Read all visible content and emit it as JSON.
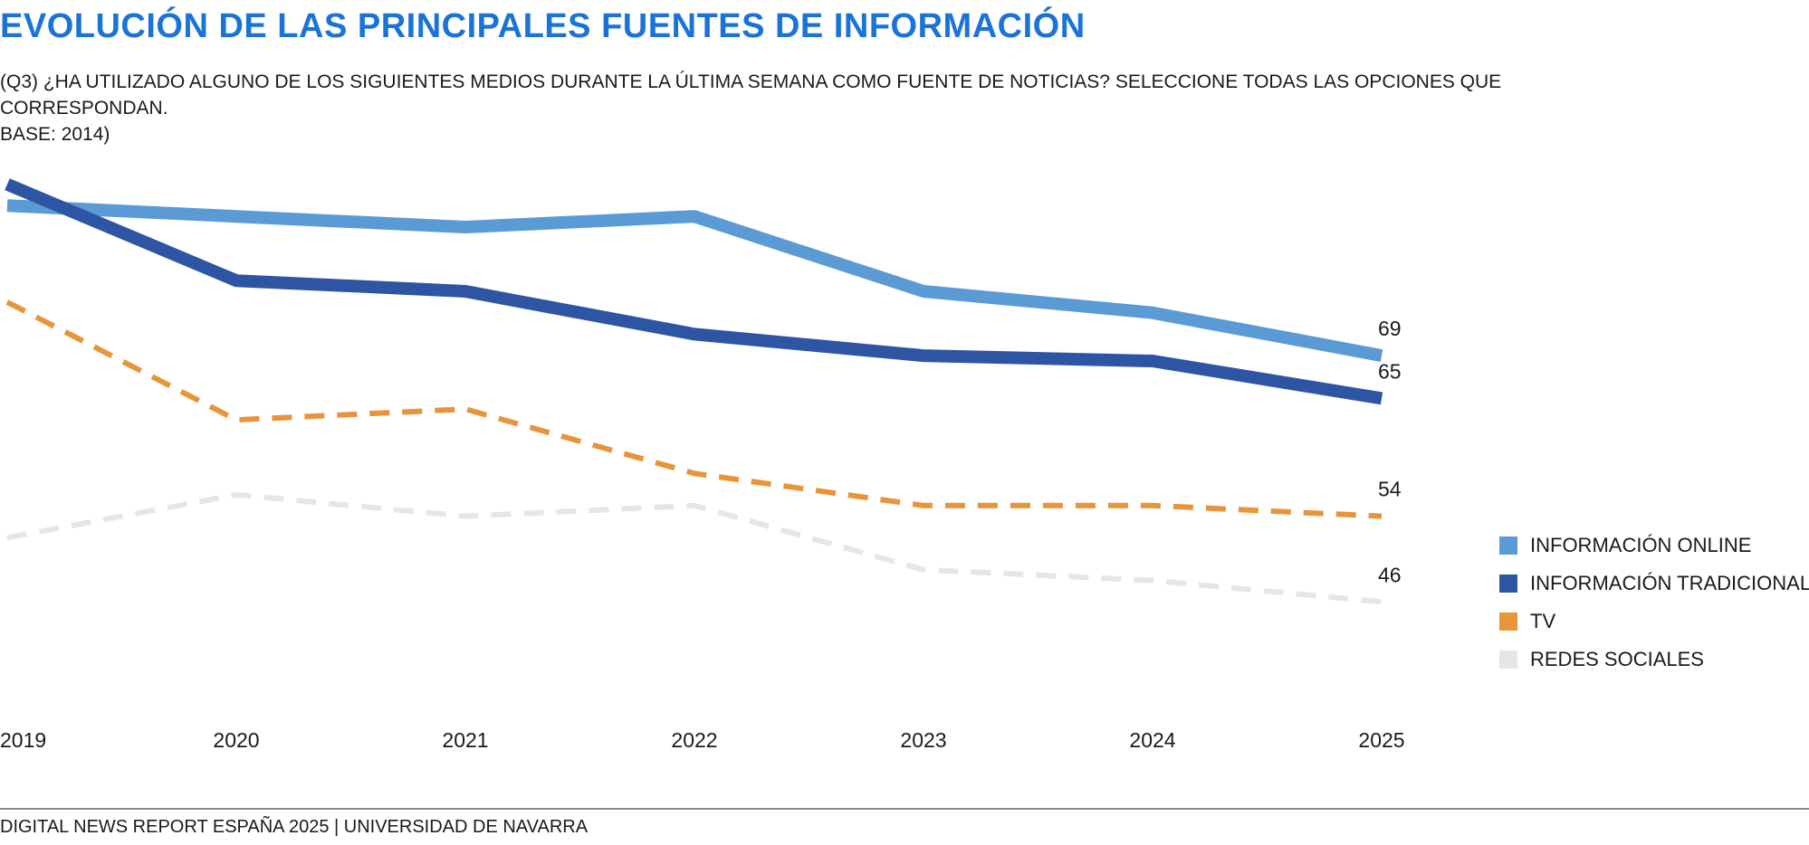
{
  "title": "EVOLUCIÓN DE LAS PRINCIPALES FUENTES DE INFORMACIÓN",
  "subtitle_lines": [
    "(Q3) ¿HA UTILIZADO ALGUNO DE LOS SIGUIENTES MEDIOS DURANTE LA ÚLTIMA SEMANA COMO FUENTE DE NOTICIAS? SELECCIONE TODAS LAS OPCIONES QUE",
    "CORRESPONDAN.",
    "BASE: 2014)"
  ],
  "footer": "DIGITAL NEWS REPORT ESPAÑA 2025 | UNIVERSIDAD DE NAVARRA",
  "legend": [
    {
      "label": "INFORMACIÓN ONLINE",
      "color": "#5b9bd5"
    },
    {
      "label": "INFORMACIÓN TRADICIONAL",
      "color": "#2e55a3"
    },
    {
      "label": "TV",
      "color": "#e8943a"
    },
    {
      "label": "REDES SOCIALES",
      "color": "#e6e6e6"
    }
  ],
  "chart_data": {
    "type": "line",
    "categories": [
      "2019",
      "2020",
      "2021",
      "2022",
      "2023",
      "2024",
      "2025"
    ],
    "ylim": [
      38,
      87
    ],
    "grid": false,
    "legend_position": "right",
    "series": [
      {
        "name": "INFORMACIÓN ONLINE",
        "values": [
          83,
          82,
          81,
          82,
          75,
          73,
          69
        ],
        "color": "#5b9bd5",
        "style": "solid",
        "end_label": "69"
      },
      {
        "name": "INFORMACIÓN TRADICIONAL",
        "values": [
          85,
          76,
          75,
          71,
          69,
          68.5,
          65
        ],
        "color": "#2e55a3",
        "style": "solid",
        "end_label": "65"
      },
      {
        "name": "TV",
        "values": [
          74,
          63,
          64,
          58,
          55,
          55,
          54
        ],
        "color": "#e8943a",
        "style": "dashed",
        "end_label": "54"
      },
      {
        "name": "REDES SOCIALES",
        "values": [
          52,
          56,
          54,
          55,
          49,
          48,
          46
        ],
        "color": "#e6e6e6",
        "style": "dashed",
        "end_label": "46"
      }
    ]
  }
}
